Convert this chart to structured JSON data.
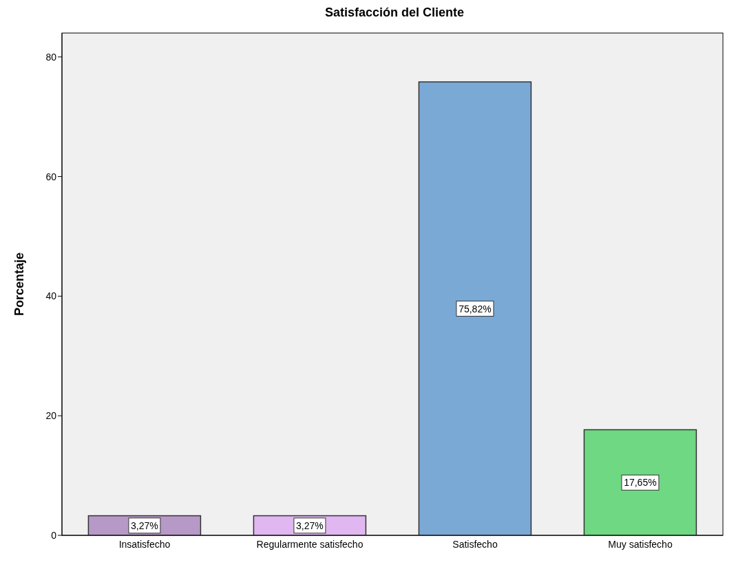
{
  "chart_data": {
    "type": "bar",
    "title": "Satisfacción del Cliente",
    "ylabel": "Porcentaje",
    "categories": [
      "Insatisfecho",
      "Regularmente satisfecho",
      "Satisfecho",
      "Muy satisfecho"
    ],
    "values": [
      3.27,
      3.27,
      75.82,
      17.65
    ],
    "colors": [
      "#b799c7",
      "#e0b7f0",
      "#7ba9d6",
      "#6fd882"
    ],
    "value_labels": [
      "3,27%",
      "3,27%",
      "75,82%",
      "17,65%"
    ],
    "ylim": [
      0,
      84
    ],
    "yticks": [
      0,
      20,
      40,
      60,
      80
    ],
    "grid": false,
    "legend": false
  }
}
